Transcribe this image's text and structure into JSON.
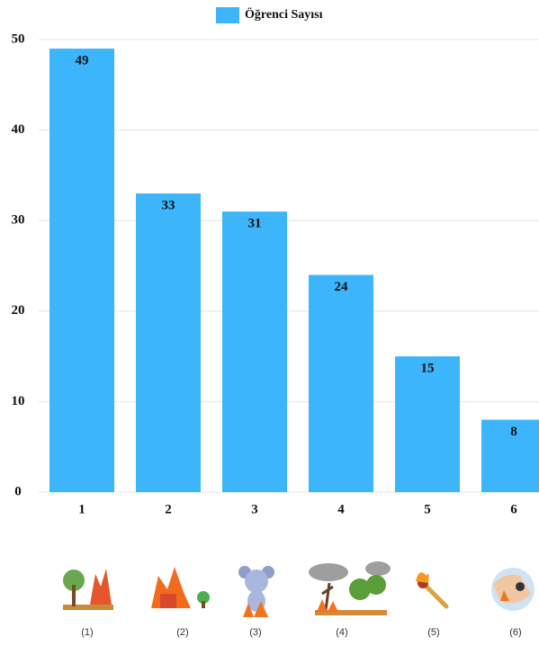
{
  "chart_data": {
    "type": "bar",
    "series": [
      {
        "name": "Öğrenci Sayısı",
        "color": "#3db5fb",
        "values": [
          49,
          33,
          31,
          24,
          15,
          8
        ]
      }
    ],
    "categories": [
      "1",
      "2",
      "3",
      "4",
      "5",
      "6"
    ],
    "ylim": [
      0,
      50
    ],
    "yticks": [
      0,
      10,
      20,
      30,
      40,
      50
    ],
    "grid": true,
    "legend": "top",
    "icon_labels": [
      "(1)",
      "(2)",
      "(3)",
      "(4)",
      "(5)",
      "(6)"
    ]
  }
}
